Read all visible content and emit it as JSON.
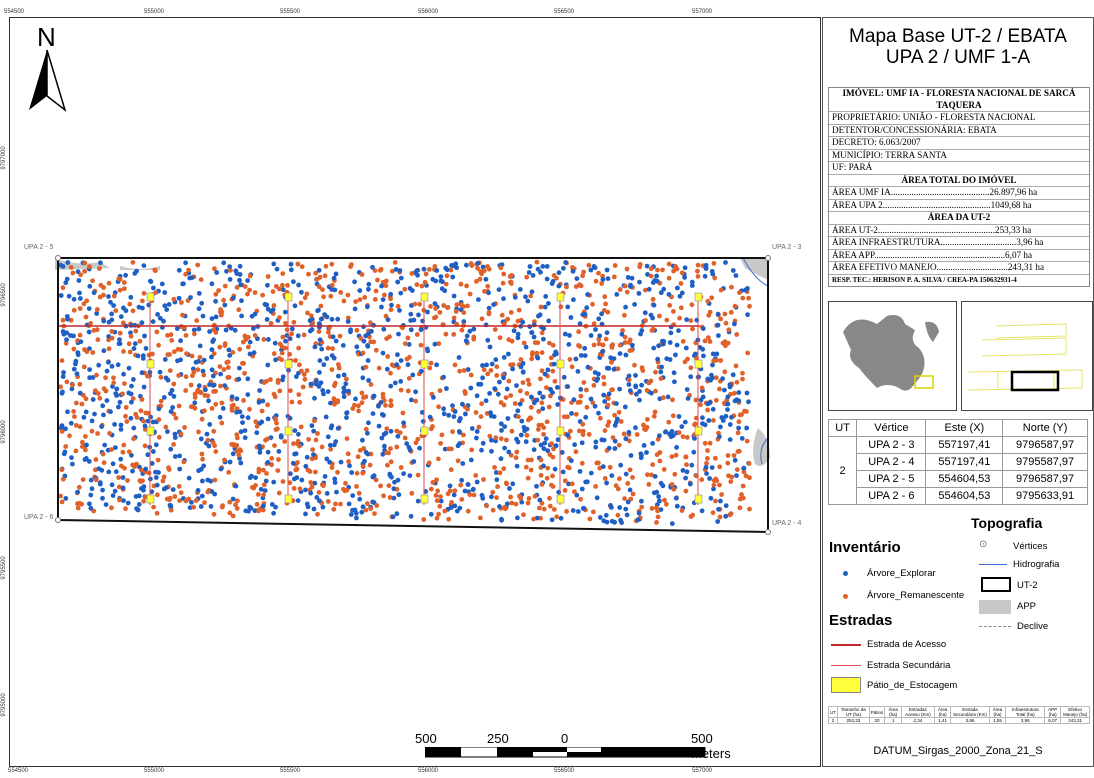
{
  "map": {
    "coords_top": [
      "554500",
      "555000",
      "555500",
      "556000",
      "556500",
      "557000"
    ],
    "coords_bottom": [
      "554500",
      "555000",
      "555500",
      "556000",
      "556500",
      "557000"
    ],
    "coords_left": [
      "9797000",
      "9796500",
      "9796000",
      "9795500",
      "9795000"
    ],
    "coords_right": [
      "9797000",
      "9796500",
      "9796000",
      "9795500",
      "9795000"
    ],
    "north_label": "N",
    "vertex_labels": [
      "UPA 2 - 5",
      "UPA 2 - 3",
      "UPA 2 - 6",
      "UPA 2 - 4"
    ],
    "scale_labels": [
      "500",
      "250",
      "0",
      "500 Meters"
    ],
    "colors": {
      "explorar": "#1f5fc4",
      "remanescente": "#e0622a",
      "acesso": "#c0282c",
      "secundaria": "#e04a4a",
      "patio": "#ffff3b",
      "app": "#c8c8c8",
      "hidro": "#3b6fd0"
    }
  },
  "panel": {
    "title1": "Mapa Base UT-2 / EBATA",
    "title2": "UPA 2 / UMF 1-A",
    "info": {
      "imovel": "IMÓVEL: UMF IA - FLORESTA NACIONAL DE SARCÁ TAQUERA",
      "proprietario": "PROPRIETÁRIO: UNIÃO - FLORESTA NACIONAL",
      "detentor": "DETENTOR/CONCESSIONÁRIA: EBATA",
      "decreto": "DECRETO: 6.063/2007",
      "municipio": "MUNICÍPIO: TERRA SANTA",
      "uf": "UF: PARÁ",
      "area_total_hd": "ÁREA TOTAL DO IMÓVEL",
      "area_umf": "ÁREA UMF IA...........................................26.897,96 ha",
      "area_upa": "ÁREA UPA 2...............................................1049,68 ha",
      "area_ut_hd": "ÁREA DA UT-2",
      "area_ut": "ÁREA UT-2...................................................253,33 ha",
      "area_infra": "ÁREA INFRAESTRUTURA.................................3,96 ha",
      "area_app": "ÁREA APP.........................................................6,07 ha",
      "area_efetivo": "ÁREA EFETIVO MANEJO...............................243,31 ha",
      "resp": "RESP. TEC.: HERISON P. A. SILVA / CREA-PA 150632931-4"
    },
    "vertices": {
      "headers": [
        "UT",
        "Vértice",
        "Este (X)",
        "Norte (Y)"
      ],
      "ut": "2",
      "rows": [
        [
          "UPA 2 - 3",
          "557197,41",
          "9796587,97"
        ],
        [
          "UPA 2 - 4",
          "557197,41",
          "9795587,97"
        ],
        [
          "UPA 2 - 5",
          "554604,53",
          "9796587,97"
        ],
        [
          "UPA 2 - 6",
          "554604,53",
          "9795633,91"
        ]
      ]
    },
    "legend": {
      "topografia": "Topografia",
      "vertices": "Vértices",
      "hidrografia": "Hidrografia",
      "ut2": "UT-2",
      "app": "APP",
      "declive": "Declive",
      "inventario": "Inventário",
      "explorar": "Árvore_Explorar",
      "remanescente": "Árvore_Remanescente",
      "estradas": "Estradas",
      "acesso": "Estrada de Acesso",
      "secundaria": "Estrada Secundária",
      "patio": "Pátio_de_Estocagem"
    },
    "summary": {
      "headers": [
        "UT",
        "Tamanho da UT (ha)",
        "Pátios",
        "Área (ha)",
        "Estradas Acesso (Km)",
        "Área (ha)",
        "Estrada Secundária (Km)",
        "Área (ha)",
        "Infraestrutura Total (ha)",
        "APP (ha)",
        "Efetivo Manejo (ha)"
      ],
      "values": [
        "2",
        "253,33",
        "20",
        "1",
        "2,34",
        "1,41",
        "3,86",
        "1,55",
        "3,96",
        "6,07",
        "243,31"
      ]
    },
    "datum": "DATUM_Sirgas_2000_Zona_21_S"
  }
}
